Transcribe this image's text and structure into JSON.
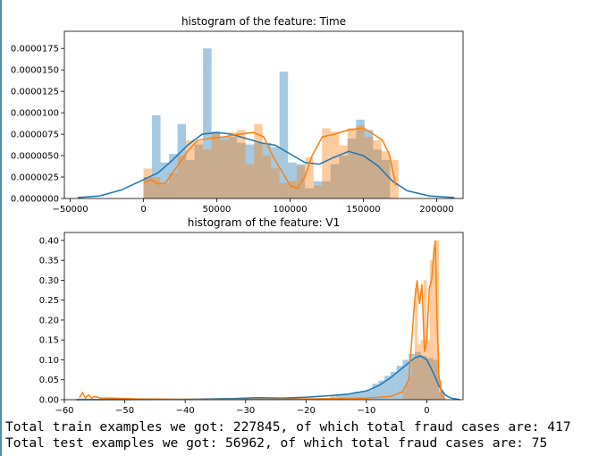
{
  "chart_data": [
    {
      "type": "bar",
      "title": "histogram of the feature: Time",
      "xlabel": "",
      "ylabel": "",
      "xlim": [
        -54000,
        218000
      ],
      "ylim": [
        0,
        1.95e-05
      ],
      "x_ticks": [
        -50000,
        0,
        50000,
        100000,
        150000,
        200000
      ],
      "x_tick_labels": [
        "−50000",
        "0",
        "50000",
        "100000",
        "150000",
        "200000"
      ],
      "y_ticks": [
        0,
        2.5e-06,
        5e-06,
        7.5e-06,
        1e-05,
        1.25e-05,
        1.5e-05,
        1.75e-05
      ],
      "y_tick_labels": [
        "0.0000000",
        "0.0000025",
        "0.0000050",
        "0.0000075",
        "0.0000100",
        "0.0000125",
        "0.0000150",
        "0.0000175"
      ],
      "colors": {
        "series_1": "#1f77b4",
        "series_2": "#ff7f0e"
      },
      "series": [
        {
          "kind": "hist",
          "bin_width": 5800,
          "bins": [
            [
              0,
              2.5e-06
            ],
            [
              5800,
              9.7e-06
            ],
            [
              11600,
              4.2e-06
            ],
            [
              17400,
              5.2e-06
            ],
            [
              23200,
              8.7e-06
            ],
            [
              29000,
              4.5e-06
            ],
            [
              34800,
              6.3e-06
            ],
            [
              40600,
              1.75e-05
            ],
            [
              46400,
              7.8e-06
            ],
            [
              52200,
              7.2e-06
            ],
            [
              58000,
              7.2e-06
            ],
            [
              63800,
              6.5e-06
            ],
            [
              69600,
              6.3e-06
            ],
            [
              75400,
              6.5e-06
            ],
            [
              81200,
              6.5e-06
            ],
            [
              87000,
              6e-06
            ],
            [
              92800,
              1.48e-05
            ],
            [
              98600,
              4.2e-06
            ],
            [
              104400,
              4e-06
            ],
            [
              110200,
              1.2e-06
            ],
            [
              116000,
              2e-06
            ],
            [
              121800,
              2e-06
            ],
            [
              127600,
              4e-06
            ],
            [
              133400,
              5e-06
            ],
            [
              139200,
              7e-06
            ],
            [
              145000,
              9.2e-06
            ],
            [
              150800,
              8e-06
            ],
            [
              156600,
              5.7e-06
            ],
            [
              162400,
              4.5e-06
            ]
          ]
        },
        {
          "kind": "hist",
          "bin_width": 5800,
          "bins": [
            [
              0,
              3.5e-06
            ],
            [
              5800,
              2.5e-06
            ],
            [
              11600,
              1.8e-06
            ],
            [
              17400,
              3e-06
            ],
            [
              23200,
              5e-06
            ],
            [
              29000,
              6.8e-06
            ],
            [
              34800,
              6.7e-06
            ],
            [
              40600,
              5.7e-06
            ],
            [
              46400,
              7.7e-06
            ],
            [
              52200,
              6.8e-06
            ],
            [
              58000,
              7.7e-06
            ],
            [
              63800,
              8e-06
            ],
            [
              69600,
              4e-06
            ],
            [
              75400,
              8.7e-06
            ],
            [
              81200,
              5e-06
            ],
            [
              87000,
              3.5e-06
            ],
            [
              92800,
              1.8e-06
            ],
            [
              98600,
              2e-06
            ],
            [
              104400,
              3.8e-06
            ],
            [
              110200,
              4.8e-06
            ],
            [
              116000,
              1.5e-06
            ],
            [
              121800,
              8.2e-06
            ],
            [
              127600,
              7.8e-06
            ],
            [
              133400,
              6.2e-06
            ],
            [
              139200,
              8.2e-06
            ],
            [
              145000,
              8.5e-06
            ],
            [
              150800,
              7.2e-06
            ],
            [
              156600,
              6.8e-06
            ],
            [
              162400,
              5.5e-06
            ],
            [
              168200,
              4.5e-06
            ]
          ]
        },
        {
          "kind": "kde",
          "points": [
            [
              -45000,
              1e-07
            ],
            [
              -30000,
              3e-07
            ],
            [
              -15000,
              1e-06
            ],
            [
              0,
              2.2e-06
            ],
            [
              10000,
              3e-06
            ],
            [
              20000,
              4.5e-06
            ],
            [
              30000,
              6.2e-06
            ],
            [
              40000,
              7.5e-06
            ],
            [
              50000,
              7.7e-06
            ],
            [
              60000,
              7.5e-06
            ],
            [
              70000,
              7e-06
            ],
            [
              80000,
              6.5e-06
            ],
            [
              90000,
              6.2e-06
            ],
            [
              100000,
              5.2e-06
            ],
            [
              110000,
              4.2e-06
            ],
            [
              120000,
              4e-06
            ],
            [
              130000,
              4.8e-06
            ],
            [
              140000,
              5.5e-06
            ],
            [
              150000,
              5e-06
            ],
            [
              160000,
              3.8e-06
            ],
            [
              170000,
              2e-06
            ],
            [
              180000,
              9e-07
            ],
            [
              195000,
              3e-07
            ],
            [
              212000,
              1e-07
            ]
          ]
        },
        {
          "kind": "kde",
          "points": [
            [
              0,
              1.8e-06
            ],
            [
              5000,
              2.2e-06
            ],
            [
              10000,
              1.7e-06
            ],
            [
              15000,
              1.8e-06
            ],
            [
              22000,
              3.5e-06
            ],
            [
              30000,
              5.5e-06
            ],
            [
              37000,
              6.8e-06
            ],
            [
              45000,
              7e-06
            ],
            [
              55000,
              7.2e-06
            ],
            [
              65000,
              7.5e-06
            ],
            [
              75000,
              7.7e-06
            ],
            [
              82000,
              7.2e-06
            ],
            [
              88000,
              5e-06
            ],
            [
              95000,
              3e-06
            ],
            [
              100000,
              1.5e-06
            ],
            [
              105000,
              1.2e-06
            ],
            [
              110000,
              2.5e-06
            ],
            [
              115000,
              5e-06
            ],
            [
              122000,
              7.2e-06
            ],
            [
              130000,
              7.5e-06
            ],
            [
              140000,
              8e-06
            ],
            [
              150000,
              8.2e-06
            ],
            [
              157000,
              7.5e-06
            ],
            [
              163000,
              6.8e-06
            ],
            [
              168000,
              5e-06
            ],
            [
              172000,
              1.5e-06
            ]
          ]
        }
      ]
    },
    {
      "type": "bar",
      "title": "histogram of the feature: V1",
      "xlabel": "",
      "ylabel": "",
      "xlim": [
        -60,
        6
      ],
      "ylim": [
        0,
        0.42
      ],
      "x_ticks": [
        -60,
        -50,
        -40,
        -30,
        -20,
        -10,
        0
      ],
      "x_tick_labels": [
        "−60",
        "−50",
        "−40",
        "−30",
        "−20",
        "−10",
        "0"
      ],
      "y_ticks": [
        0,
        0.05,
        0.1,
        0.15,
        0.2,
        0.25,
        0.3,
        0.35,
        0.4
      ],
      "y_tick_labels": [
        "0.00",
        "0.05",
        "0.10",
        "0.15",
        "0.20",
        "0.25",
        "0.30",
        "0.35",
        "0.40"
      ],
      "colors": {
        "series_1": "#1f77b4",
        "series_2": "#ff7f0e"
      },
      "series": [
        {
          "kind": "hist",
          "bin_width": 1,
          "bins": [
            [
              -16,
              0.008
            ],
            [
              -15,
              0.012
            ],
            [
              -14,
              0.015
            ],
            [
              -13,
              0.015
            ],
            [
              -12,
              0.02
            ],
            [
              -11,
              0.022
            ],
            [
              -10,
              0.025
            ],
            [
              -9,
              0.04
            ],
            [
              -8,
              0.048
            ],
            [
              -7,
              0.06
            ],
            [
              -6,
              0.07
            ],
            [
              -5,
              0.085
            ],
            [
              -4,
              0.1
            ],
            [
              -3,
              0.115
            ],
            [
              -2,
              0.12
            ],
            [
              -1,
              0.11
            ],
            [
              0,
              0.105
            ],
            [
              1,
              0.1
            ],
            [
              2,
              0.02
            ]
          ]
        },
        {
          "kind": "hist",
          "bin_width": 0.5,
          "bins": [
            [
              -4,
              0.02
            ],
            [
              -3.5,
              0.04
            ],
            [
              -3,
              0.06
            ],
            [
              -2.5,
              0.1
            ],
            [
              -2,
              0.28
            ],
            [
              -1.5,
              0.14
            ],
            [
              -1,
              0.15
            ],
            [
              -0.5,
              0.3
            ],
            [
              0,
              0.15
            ],
            [
              0.5,
              0.35
            ],
            [
              1,
              0.38
            ],
            [
              1.5,
              0.4
            ],
            [
              2,
              0.05
            ]
          ]
        },
        {
          "kind": "kde",
          "points": [
            [
              -58,
              0
            ],
            [
              -40,
              0.001
            ],
            [
              -32,
              0.003
            ],
            [
              -28,
              0.005
            ],
            [
              -24,
              0.004
            ],
            [
              -20,
              0.006
            ],
            [
              -16,
              0.01
            ],
            [
              -13,
              0.014
            ],
            [
              -10,
              0.022
            ],
            [
              -8,
              0.035
            ],
            [
              -6,
              0.055
            ],
            [
              -4,
              0.08
            ],
            [
              -2,
              0.105
            ],
            [
              -1,
              0.11
            ],
            [
              0,
              0.1
            ],
            [
              1,
              0.07
            ],
            [
              2,
              0.035
            ],
            [
              3,
              0.012
            ],
            [
              4,
              0.004
            ],
            [
              5.5,
              0
            ]
          ]
        },
        {
          "kind": "kde",
          "points": [
            [
              -57.5,
              0.005
            ],
            [
              -57,
              0.018
            ],
            [
              -56.5,
              0.004
            ],
            [
              -56,
              0.012
            ],
            [
              -55.5,
              0.004
            ],
            [
              -55,
              0.008
            ],
            [
              -54,
              0.004
            ],
            [
              -52,
              0.004
            ],
            [
              -48,
              0.002
            ],
            [
              -40,
              0.001
            ],
            [
              -30,
              0.001
            ],
            [
              -20,
              0.002
            ],
            [
              -10,
              0.004
            ],
            [
              -6,
              0.008
            ],
            [
              -4,
              0.02
            ],
            [
              -3,
              0.05
            ],
            [
              -2.5,
              0.15
            ],
            [
              -2,
              0.25
            ],
            [
              -1.6,
              0.3
            ],
            [
              -1.2,
              0.24
            ],
            [
              -0.8,
              0.29
            ],
            [
              -0.4,
              0.12
            ],
            [
              0,
              0.15
            ],
            [
              0.4,
              0.28
            ],
            [
              0.8,
              0.3
            ],
            [
              1.1,
              0.36
            ],
            [
              1.4,
              0.4
            ],
            [
              1.7,
              0.2
            ],
            [
              2,
              0.06
            ],
            [
              2.5,
              0.01
            ],
            [
              3,
              0
            ]
          ]
        }
      ]
    }
  ],
  "console": {
    "line1": "Total train examples we got: 227845, of which total fraud cases are: 417",
    "line2": "Total test examples we got: 56962, of which total fraud cases are: 75"
  }
}
